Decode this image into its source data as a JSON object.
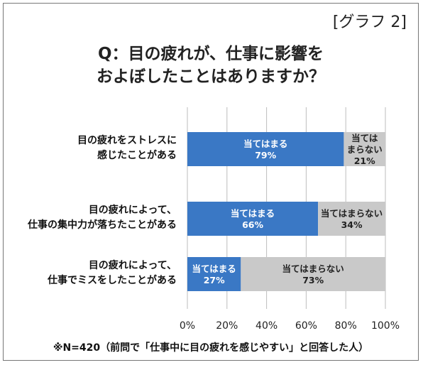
{
  "tag": "[グラフ 2]",
  "title_line1": "Q：目の疲れが、仕事に影響を",
  "title_line2": "およぼしたことはありますか？",
  "note": "※N=420（前問で「仕事中に目の疲れを感じやすい」と回答した人）",
  "colors": {
    "yes": "#3a78c5",
    "no": "#c9c9c9",
    "grid": "#bdbdbd"
  },
  "chart_data": {
    "type": "bar",
    "orientation": "horizontal",
    "stacked": true,
    "categories": [
      [
        "目の疲れをストレスに",
        "感じたことがある"
      ],
      [
        "目の疲れによって、",
        "仕事の集中力が落ちたことがある"
      ],
      [
        "目の疲れによって、",
        "仕事でミスをしたことがある"
      ]
    ],
    "series": [
      {
        "name": "当てはまる",
        "values": [
          79,
          66,
          27
        ]
      },
      {
        "name": "当てはまらない",
        "values": [
          21,
          34,
          73
        ]
      }
    ],
    "bar_labels": [
      [
        [
          "当てはまる",
          "79%"
        ],
        [
          "当ては",
          "まらない",
          "21%"
        ]
      ],
      [
        [
          "当てはまる",
          "66%"
        ],
        [
          "当てはまらない",
          "34%"
        ]
      ],
      [
        [
          "当てはまる",
          "27%"
        ],
        [
          "当てはまらない",
          "73%"
        ]
      ]
    ],
    "xlim": [
      0,
      100
    ],
    "xticks": [
      "0%",
      "20%",
      "40%",
      "60%",
      "80%",
      "100%"
    ],
    "grid": true
  }
}
